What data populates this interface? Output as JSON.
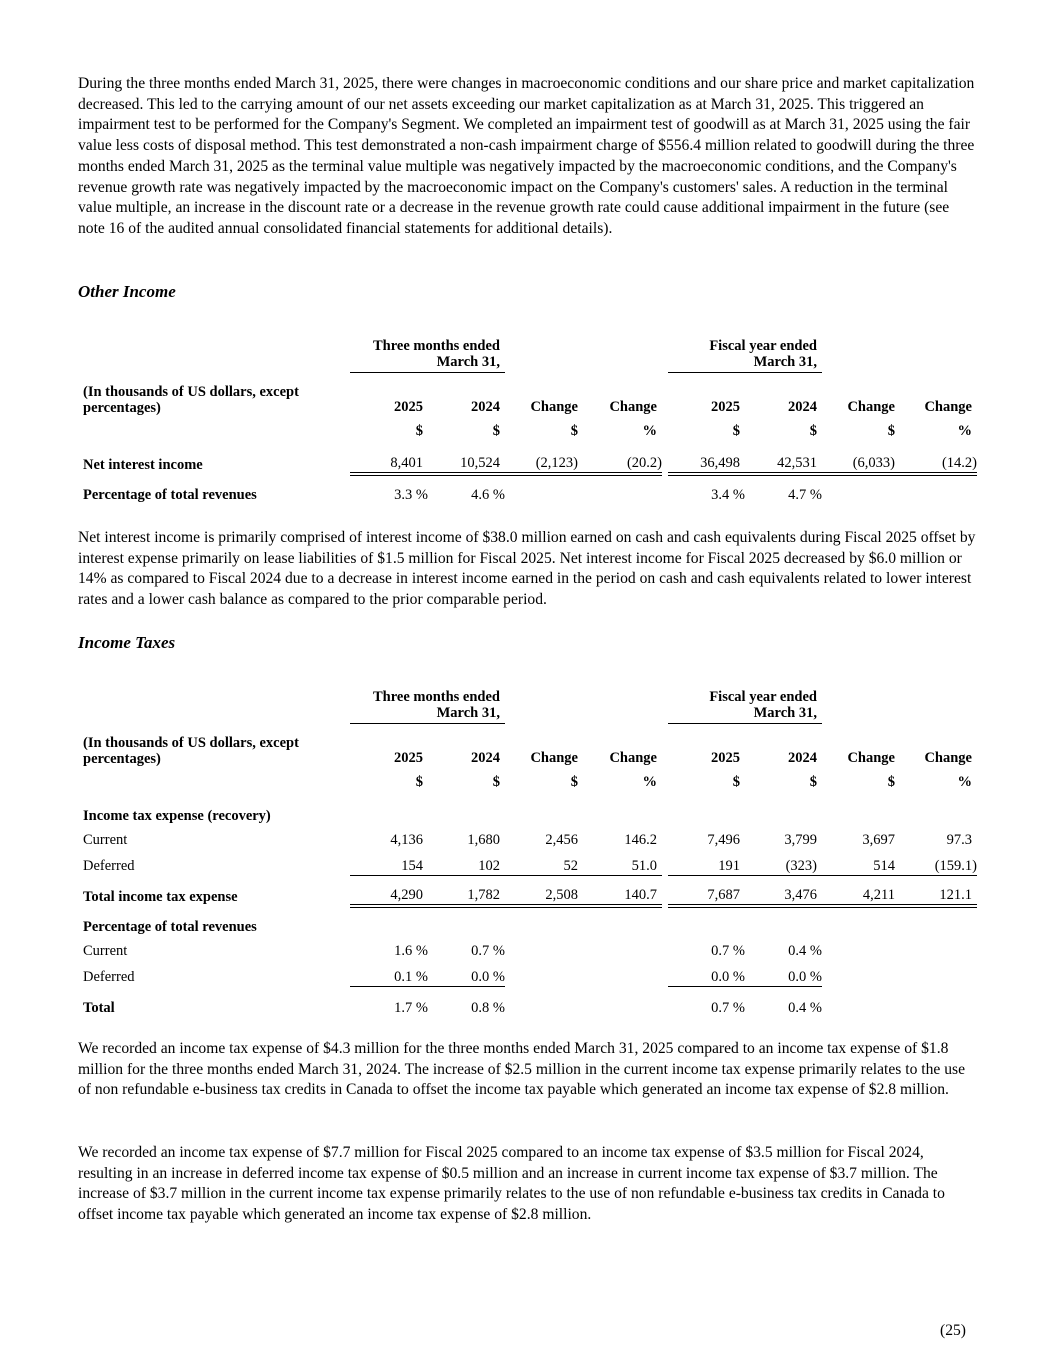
{
  "intro_paragraph": "During the three months ended March 31, 2025, there were changes in macroeconomic conditions and our share price and market capitalization decreased. This led to the carrying amount of our net assets exceeding our market capitalization as at March 31, 2025. This triggered an impairment test to be performed for the Company's Segment. We completed an impairment test of goodwill as at March 31, 2025 using the fair value less costs of disposal method. This test demonstrated a non-cash impairment charge of $556.4 million related to goodwill during the three months ended March 31, 2025 as the terminal value multiple was negatively impacted by the macroeconomic conditions, and the Company's revenue growth rate was negatively impacted by the macroeconomic impact on the Company's customers' sales. A reduction in the terminal value multiple, an increase in the discount rate or a decrease in the revenue growth rate could cause additional impairment in the future (see note 16 of the audited annual consolidated financial statements for additional details).",
  "other_income": {
    "heading": "Other Income",
    "group1": "Three months ended March 31,",
    "group2": "Fiscal year ended March 31,",
    "units_label": "(In thousands of US dollars, except percentages)",
    "columns": [
      "2025",
      "2024",
      "Change",
      "Change",
      "2025",
      "2024",
      "Change",
      "Change"
    ],
    "units": [
      "$",
      "$",
      "$",
      "%",
      "$",
      "$",
      "$",
      "%"
    ],
    "rows": [
      {
        "label": "Net interest income",
        "values": [
          "8,401",
          "10,524",
          "(2,123)",
          "(20.2)",
          "36,498",
          "42,531",
          "(6,033)",
          "(14.2)"
        ]
      },
      {
        "label": "Percentage of total revenues",
        "values": [
          "3.3 %",
          "4.6 %",
          "",
          "",
          "3.4 %",
          "4.7 %",
          "",
          ""
        ]
      }
    ],
    "paragraph": "Net interest income is primarily comprised of interest income of $38.0 million earned on cash and cash equivalents during Fiscal 2025 offset by interest expense primarily on lease liabilities of $1.5 million for Fiscal 2025. Net interest income for Fiscal 2025 decreased by $6.0 million or 14% as compared to Fiscal 2024 due to a decrease in interest income earned in the period on cash and cash equivalents related to lower interest rates and a lower cash balance as compared to the prior comparable period."
  },
  "income_taxes": {
    "heading": "Income Taxes",
    "group1": "Three months ended March 31,",
    "group2": "Fiscal year ended March 31,",
    "units_label": "(In thousands of US dollars, except percentages)",
    "columns": [
      "2025",
      "2024",
      "Change",
      "Change",
      "2025",
      "2024",
      "Change",
      "Change"
    ],
    "units": [
      "$",
      "$",
      "$",
      "%",
      "$",
      "$",
      "$",
      "%"
    ],
    "section1": "Income tax expense (recovery)",
    "current": {
      "label": "Current",
      "values": [
        "4,136",
        "1,680",
        "2,456",
        "146.2",
        "7,496",
        "3,799",
        "3,697",
        "97.3"
      ]
    },
    "deferred": {
      "label": "Deferred",
      "values": [
        "154",
        "102",
        "52",
        "51.0",
        "191",
        "(323)",
        "514",
        "(159.1)"
      ]
    },
    "total": {
      "label": "Total income tax expense",
      "values": [
        "4,290",
        "1,782",
        "2,508",
        "140.7",
        "7,687",
        "3,476",
        "4,211",
        "121.1"
      ]
    },
    "section2": "Percentage of total revenues",
    "pct_current": {
      "label": "Current",
      "values": [
        "1.6 %",
        "0.7 %",
        "0.7 %",
        "0.4 %"
      ]
    },
    "pct_deferred": {
      "label": "Deferred",
      "values": [
        "0.1 %",
        "0.0 %",
        "0.0 %",
        "0.0 %"
      ]
    },
    "pct_total": {
      "label": "Total",
      "values": [
        "1.7 %",
        "0.8 %",
        "0.7 %",
        "0.4 %"
      ]
    },
    "paragraph1": "We recorded an income tax expense of $4.3 million for the three months ended March 31, 2025 compared to an income tax expense of $1.8 million for the three months ended March 31, 2024. The increase of $2.5 million in the current income tax expense primarily relates to the use of non refundable e-business tax credits in Canada to offset the income tax payable which generated an income tax expense of $2.8 million.",
    "paragraph2": "We recorded an income tax expense of $7.7 million for Fiscal 2025 compared to an income tax expense of $3.5 million for Fiscal 2024, resulting in an increase in deferred income tax expense of $0.5 million and an increase in current income tax expense of $3.7 million. The increase of $3.7 million in the current income tax expense primarily relates to the use of non refundable e-business tax credits in Canada to offset income tax payable which generated an income tax expense of $2.8 million."
  },
  "page_number": "(25)"
}
